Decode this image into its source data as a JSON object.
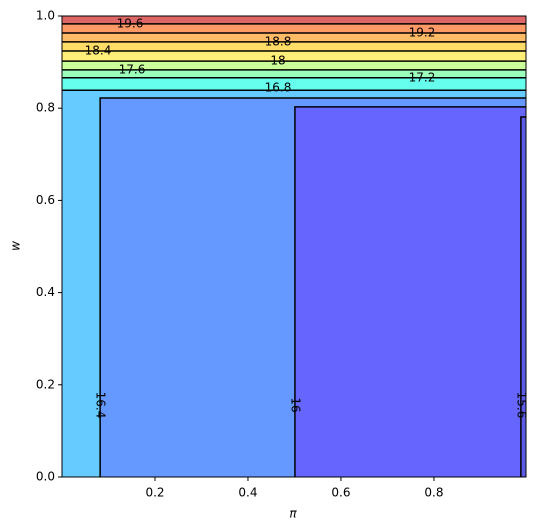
{
  "chart_data": {
    "type": "contour",
    "xlabel": "π",
    "ylabel": "w",
    "xlim": [
      0,
      0.998
    ],
    "ylim": [
      0,
      1
    ],
    "xticks": [
      0.2,
      0.4,
      0.6,
      0.8
    ],
    "yticks": [
      {
        "value": 0,
        "label": "0.0"
      },
      0.2,
      0.4,
      0.6,
      0.8,
      {
        "value": 1,
        "label": "1.0"
      }
    ],
    "regions": [
      {
        "color": "#66ccff",
        "x": [
          0,
          0.998,
          0.998,
          0
        ],
        "y": [
          0,
          0,
          0.839,
          0.839
        ]
      },
      {
        "color": "#6699ff",
        "x": [
          0.082,
          0.082,
          0.998,
          0.998
        ],
        "y": [
          0,
          0.822,
          0.822,
          0
        ]
      },
      {
        "color": "#6666ff",
        "x": [
          0.501,
          0.501,
          0.998,
          0.998
        ],
        "y": [
          0,
          0.803,
          0.803,
          0
        ]
      },
      {
        "color": "#5c5ce6",
        "x": [
          0.987,
          0.987,
          0.998,
          0.998
        ],
        "y": [
          0,
          0.781,
          0.781,
          0
        ]
      },
      {
        "color": "#66ffee",
        "x": [
          0,
          0.998,
          0.998,
          0
        ],
        "y": [
          0.839,
          0.839,
          0.866,
          0.866
        ]
      },
      {
        "color": "#99ffbb",
        "x": [
          0,
          0.998,
          0.998,
          0
        ],
        "y": [
          0.866,
          0.866,
          0.883,
          0.883
        ]
      },
      {
        "color": "#ccff99",
        "x": [
          0,
          0.998,
          0.998,
          0
        ],
        "y": [
          0.883,
          0.883,
          0.902,
          0.902
        ]
      },
      {
        "color": "#ffee77",
        "x": [
          0,
          0.998,
          0.998,
          0
        ],
        "y": [
          0.902,
          0.902,
          0.924,
          0.924
        ]
      },
      {
        "color": "#ffdd66",
        "x": [
          0,
          0.998,
          0.998,
          0
        ],
        "y": [
          0.924,
          0.924,
          0.944,
          0.944
        ]
      },
      {
        "color": "#ffbb66",
        "x": [
          0,
          0.998,
          0.998,
          0
        ],
        "y": [
          0.944,
          0.944,
          0.963,
          0.963
        ]
      },
      {
        "color": "#ff9966",
        "x": [
          0,
          0.998,
          0.998,
          0
        ],
        "y": [
          0.963,
          0.963,
          0.983,
          0.983
        ]
      },
      {
        "color": "#dd6666",
        "x": [
          0,
          0.998,
          0.998,
          0
        ],
        "y": [
          0.983,
          0.983,
          1,
          1
        ]
      }
    ],
    "contours": [
      {
        "level": 15.6,
        "x": [
          0.987,
          0.987,
          0.998
        ],
        "y": [
          0,
          0.781,
          0.781
        ]
      },
      {
        "level": 16.0,
        "x": [
          0.501,
          0.501,
          0.998
        ],
        "y": [
          0,
          0.803,
          0.803
        ]
      },
      {
        "level": 16.4,
        "x": [
          0.082,
          0.082,
          0.998
        ],
        "y": [
          0,
          0.822,
          0.822
        ]
      },
      {
        "level": 16.8,
        "x": [
          0,
          0.998
        ],
        "y": [
          0.839,
          0.839
        ]
      },
      {
        "level": 17.2,
        "x": [
          0,
          0.998
        ],
        "y": [
          0.866,
          0.866
        ]
      },
      {
        "level": 17.6,
        "x": [
          0,
          0.998
        ],
        "y": [
          0.883,
          0.883
        ]
      },
      {
        "level": 18.0,
        "x": [
          0,
          0.998
        ],
        "y": [
          0.902,
          0.902
        ]
      },
      {
        "level": 18.4,
        "x": [
          0,
          0.998
        ],
        "y": [
          0.924,
          0.924
        ]
      },
      {
        "level": 18.8,
        "x": [
          0,
          0.998
        ],
        "y": [
          0.944,
          0.944
        ]
      },
      {
        "level": 19.2,
        "x": [
          0,
          0.998
        ],
        "y": [
          0.963,
          0.963
        ]
      },
      {
        "level": 19.6,
        "x": [
          0,
          0.998
        ],
        "y": [
          0.983,
          0.983
        ]
      }
    ]
  }
}
